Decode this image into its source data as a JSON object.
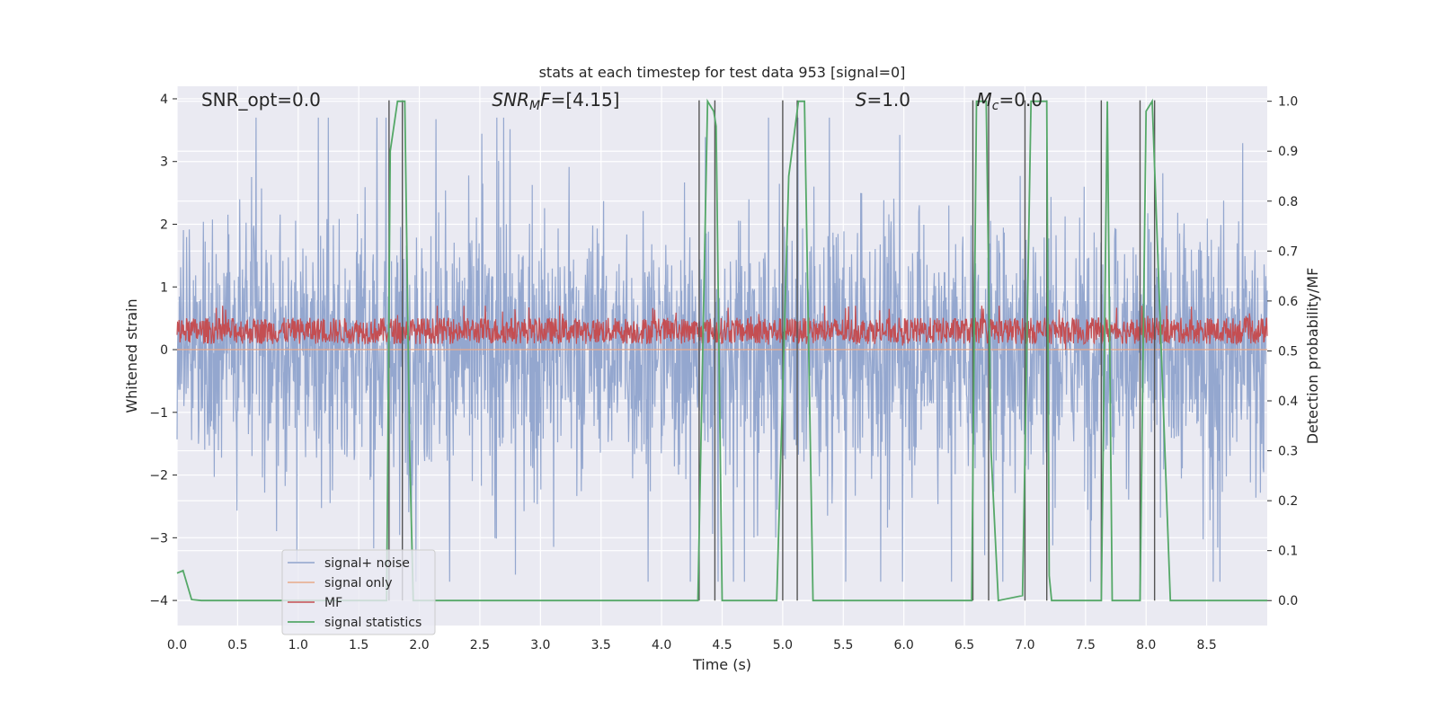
{
  "chart_data": {
    "type": "line",
    "title": "stats at each timestep for test data 953 [signal=0]",
    "xlabel": "Time (s)",
    "ylabel": "Whitened strain",
    "ylabel_right": "Detection probability/MF",
    "xlim": [
      0,
      9.0
    ],
    "ylim": [
      -4.4,
      4.2
    ],
    "ylim_right": [
      -0.05,
      1.03
    ],
    "xticks": [
      0.0,
      0.5,
      1.0,
      1.5,
      2.0,
      2.5,
      3.0,
      3.5,
      4.0,
      4.5,
      5.0,
      5.5,
      6.0,
      6.5,
      7.0,
      7.5,
      8.0,
      8.5
    ],
    "xtick_labels": [
      "0.0",
      "0.5",
      "1.0",
      "1.5",
      "2.0",
      "2.5",
      "3.0",
      "3.5",
      "4.0",
      "4.5",
      "5.0",
      "5.5",
      "6.0",
      "6.5",
      "7.0",
      "7.5",
      "8.0",
      "8.5"
    ],
    "yticks": [
      -4,
      -3,
      -2,
      -1,
      0,
      1,
      2,
      3,
      4
    ],
    "ytick_labels": [
      "−4",
      "−3",
      "−2",
      "−1",
      "0",
      "1",
      "2",
      "3",
      "4"
    ],
    "yticks_right": [
      0.0,
      0.1,
      0.2,
      0.3,
      0.4,
      0.5,
      0.6,
      0.7,
      0.8,
      0.9,
      1.0
    ],
    "ytick_labels_right": [
      "0.0",
      "0.1",
      "0.2",
      "0.3",
      "0.4",
      "0.5",
      "0.6",
      "0.7",
      "0.8",
      "0.9",
      "1.0"
    ],
    "grid": true,
    "legend_position": "lower-left",
    "annotations": [
      {
        "key": "snr-opt",
        "text": "SNR_opt=0.0",
        "x": 0.2
      },
      {
        "key": "snr-mf",
        "text": "SNR_MF=[4.15]",
        "x": 2.6
      },
      {
        "key": "s",
        "text": "S=1.0",
        "x": 5.6
      },
      {
        "key": "mc",
        "text": "M_c=0.0",
        "x": 6.6
      }
    ],
    "series": [
      {
        "name": "signal+ noise",
        "color": "#8fa3cc",
        "axis": "left",
        "amplitude": 2.6,
        "sample_rate": 1000
      },
      {
        "name": "signal only",
        "color": "#e8a98a",
        "axis": "left",
        "values": "flat at 0"
      },
      {
        "name": "MF",
        "color": "#c44e52",
        "axis": "left",
        "center": 0.3,
        "range": [
          0.0,
          0.7
        ]
      },
      {
        "name": "signal statistics",
        "color": "#55a868",
        "axis": "right",
        "x": [
          0.0,
          0.05,
          0.12,
          0.2,
          0.3,
          1.73,
          1.76,
          1.82,
          1.88,
          1.92,
          1.95,
          4.3,
          4.38,
          4.43,
          4.45,
          4.5,
          4.95,
          5.05,
          5.13,
          5.18,
          5.25,
          6.56,
          6.6,
          6.68,
          6.72,
          6.78,
          6.98,
          7.05,
          7.08,
          7.15,
          7.18,
          7.2,
          7.22,
          7.63,
          7.68,
          7.72,
          7.95,
          8.0,
          8.05,
          8.2,
          9.0
        ],
        "y": [
          0.055,
          0.06,
          0.002,
          0.0,
          0.0,
          0.0,
          0.9,
          1.0,
          1.0,
          0.3,
          0.0,
          0.0,
          1.0,
          0.98,
          0.95,
          0.0,
          0.0,
          0.85,
          1.0,
          1.0,
          0.0,
          0.0,
          1.0,
          1.0,
          0.3,
          0.0,
          0.01,
          1.0,
          1.0,
          1.0,
          1.0,
          0.05,
          0.0,
          0.0,
          1.0,
          0.0,
          0.0,
          0.98,
          1.0,
          0.0,
          0.0
        ]
      }
    ],
    "vertical_markers_x": [
      1.75,
      1.86,
      4.31,
      4.44,
      5.0,
      5.12,
      6.57,
      6.7,
      7.0,
      7.18,
      7.63,
      7.95,
      8.07
    ]
  }
}
